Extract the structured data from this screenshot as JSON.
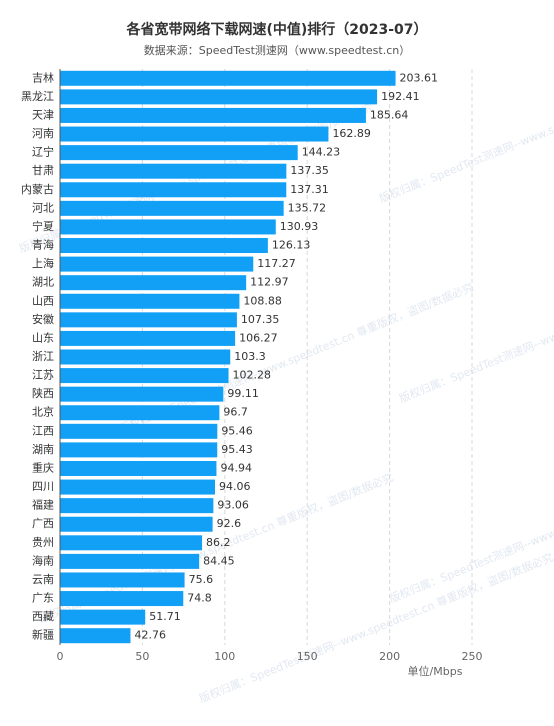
{
  "chart_data": {
    "type": "hbar",
    "title": "各省宽带网络下载网速(中值)排行（2023-07）",
    "subtitle": "数据来源：SpeedTest测速网（www.speedtest.cn）",
    "xlabel": "单位/Mbps",
    "watermark": "版权归属：SpeedTest测速网--www.speedtest.cn 尊重版权，盗图/数据必究",
    "categories": [
      "吉林",
      "黑龙江",
      "天津",
      "河南",
      "辽宁",
      "甘肃",
      "内蒙古",
      "河北",
      "宁夏",
      "青海",
      "上海",
      "湖北",
      "山西",
      "安徽",
      "山东",
      "浙江",
      "江苏",
      "陕西",
      "北京",
      "江西",
      "湖南",
      "重庆",
      "四川",
      "福建",
      "广西",
      "贵州",
      "海南",
      "云南",
      "广东",
      "西藏",
      "新疆"
    ],
    "values": [
      203.61,
      192.41,
      185.64,
      162.89,
      144.23,
      137.35,
      137.31,
      135.72,
      130.93,
      126.13,
      117.27,
      112.97,
      108.88,
      107.35,
      106.27,
      103.3,
      102.28,
      99.11,
      96.7,
      95.46,
      95.43,
      94.94,
      94.06,
      93.06,
      92.6,
      86.2,
      84.45,
      75.6,
      74.8,
      51.71,
      42.76
    ],
    "color": "#12a0f7",
    "xlim": [
      0,
      250
    ],
    "xticks": [
      0,
      50,
      100,
      150,
      200,
      250
    ],
    "grid": true
  }
}
